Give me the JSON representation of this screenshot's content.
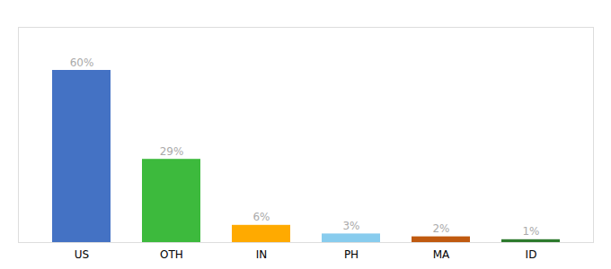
{
  "chart_data": {
    "type": "bar",
    "categories": [
      "US",
      "OTH",
      "IN",
      "PH",
      "MA",
      "ID"
    ],
    "values": [
      60,
      29,
      6,
      3,
      2,
      1
    ],
    "value_labels": [
      "60%",
      "29%",
      "6%",
      "3%",
      "2%",
      "1%"
    ],
    "data_labels": true,
    "colors": [
      "#4472c4",
      "#3dba3d",
      "#ffaa00",
      "#88ccee",
      "#c05a10",
      "#2d7a2d"
    ],
    "ylim": [
      0,
      75
    ],
    "tick_labels": "x",
    "grid": false
  }
}
